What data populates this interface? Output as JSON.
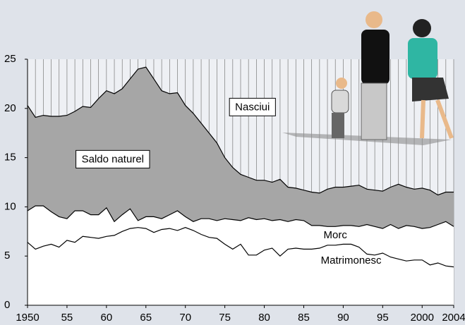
{
  "chart_data": {
    "type": "area",
    "x": [
      1950,
      1951,
      1952,
      1953,
      1954,
      1955,
      1956,
      1957,
      1958,
      1959,
      1960,
      1961,
      1962,
      1963,
      1964,
      1965,
      1966,
      1967,
      1968,
      1969,
      1970,
      1971,
      1972,
      1973,
      1974,
      1975,
      1976,
      1977,
      1978,
      1979,
      1980,
      1981,
      1982,
      1983,
      1984,
      1985,
      1986,
      1987,
      1988,
      1989,
      1990,
      1991,
      1992,
      1993,
      1994,
      1995,
      1996,
      1997,
      1998,
      1999,
      2000,
      2001,
      2002,
      2003,
      2004
    ],
    "series": [
      {
        "name": "Nasciui",
        "color": "#a6a6a6",
        "values": [
          20.3,
          19.1,
          19.3,
          19.2,
          19.2,
          19.3,
          19.7,
          20.2,
          20.1,
          21.0,
          21.8,
          21.5,
          22.0,
          23.0,
          24.0,
          24.2,
          23.0,
          21.8,
          21.5,
          21.6,
          20.3,
          19.5,
          18.5,
          17.5,
          16.5,
          15.0,
          14.0,
          13.3,
          13.0,
          12.7,
          12.7,
          12.5,
          12.8,
          12.0,
          11.9,
          11.7,
          11.5,
          11.4,
          11.8,
          12.0,
          12.0,
          12.1,
          12.2,
          11.8,
          11.7,
          11.6,
          12.0,
          12.3,
          12.0,
          11.8,
          11.9,
          11.7,
          11.2,
          11.5,
          11.5
        ]
      },
      {
        "name": "Morc",
        "color": "#ffffff",
        "values": [
          9.6,
          10.1,
          10.1,
          9.5,
          9.0,
          8.8,
          9.6,
          9.6,
          9.2,
          9.2,
          9.9,
          8.5,
          9.2,
          9.8,
          8.6,
          9.0,
          9.0,
          8.8,
          9.2,
          9.6,
          9.0,
          8.5,
          8.8,
          8.8,
          8.6,
          8.8,
          8.7,
          8.6,
          8.9,
          8.7,
          8.8,
          8.6,
          8.7,
          8.5,
          8.7,
          8.6,
          8.1,
          8.1,
          8.0,
          8.0,
          8.1,
          8.1,
          8.0,
          8.2,
          8.0,
          7.8,
          8.2,
          7.8,
          8.1,
          8.0,
          7.8,
          7.9,
          8.2,
          8.5,
          8.0
        ]
      },
      {
        "name": "Matrimonesc",
        "color": "#000000",
        "values": [
          6.4,
          5.7,
          6.0,
          6.2,
          5.9,
          6.6,
          6.4,
          7.0,
          6.9,
          6.8,
          7.0,
          7.1,
          7.5,
          7.8,
          7.9,
          7.8,
          7.4,
          7.7,
          7.8,
          7.6,
          7.9,
          7.6,
          7.2,
          6.9,
          6.8,
          6.2,
          5.7,
          6.2,
          5.1,
          5.1,
          5.6,
          5.8,
          5.0,
          5.7,
          5.8,
          5.7,
          5.7,
          5.8,
          6.1,
          6.1,
          6.2,
          6.2,
          5.9,
          5.2,
          5.1,
          5.3,
          4.9,
          4.7,
          4.5,
          4.6,
          4.6,
          4.1,
          4.3,
          4.0,
          3.9
        ]
      }
    ],
    "annotations": [
      "Saldo naturel"
    ],
    "xlim": [
      1950,
      2004
    ],
    "xticks": [
      1950,
      {
        "value": 1955,
        "label": "55"
      },
      {
        "value": 1960,
        "label": "60"
      },
      {
        "value": 1965,
        "label": "65"
      },
      {
        "value": 1970,
        "label": "70"
      },
      {
        "value": 1975,
        "label": "75"
      },
      {
        "value": 1980,
        "label": "80"
      },
      {
        "value": 1985,
        "label": "85"
      },
      {
        "value": 1990,
        "label": "90"
      },
      {
        "value": 1995,
        "label": "95"
      },
      2000,
      2004
    ],
    "ylim": [
      0,
      25
    ],
    "yticks": [
      0,
      5,
      10,
      15,
      20,
      25
    ],
    "grid": true
  }
}
